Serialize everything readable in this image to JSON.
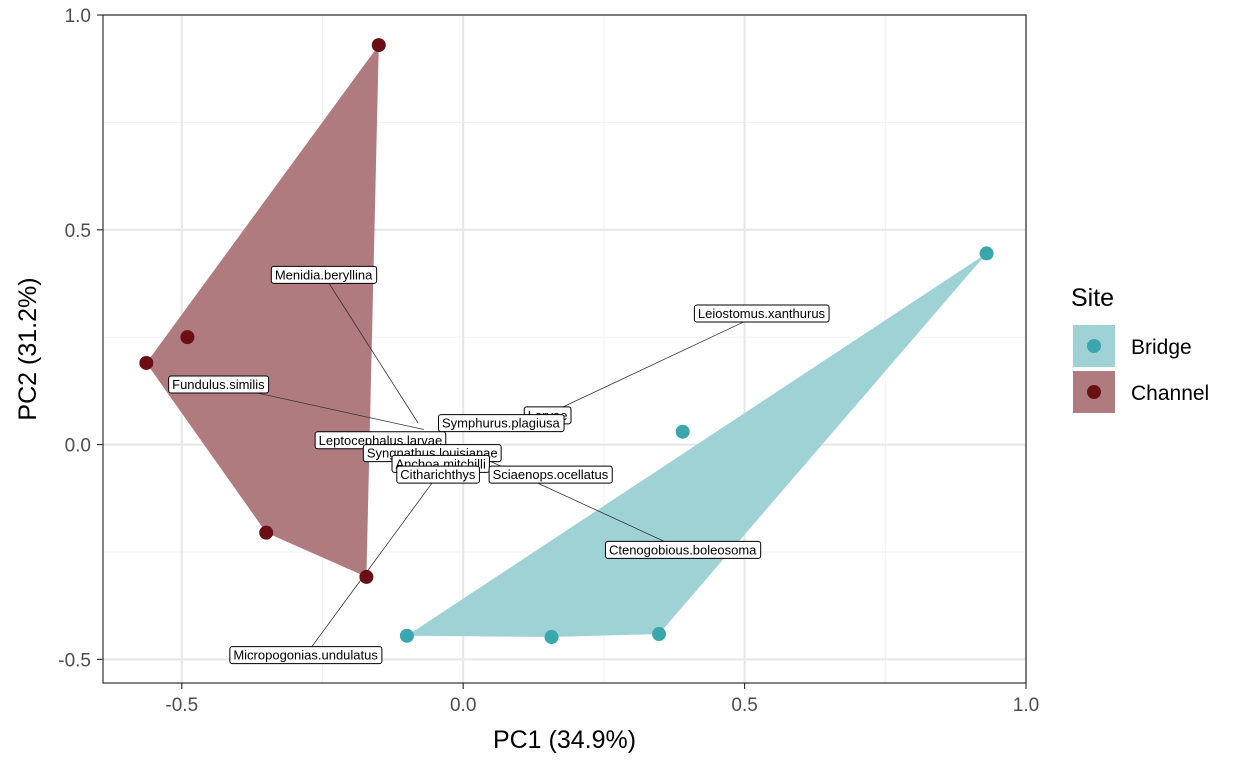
{
  "chart_data": {
    "type": "scatter",
    "xlabel": "PC1 (34.9%)",
    "ylabel": "PC2 (31.2%)",
    "xlim": [
      -0.64,
      1.0
    ],
    "ylim": [
      -0.555,
      1.0
    ],
    "x_ticks": [
      -0.5,
      0.0,
      0.5,
      1.0
    ],
    "x_tick_labels": [
      "-0.5",
      "0.0",
      "0.5",
      "1.0"
    ],
    "y_ticks": [
      -0.5,
      0.0,
      0.5,
      1.0
    ],
    "y_tick_labels": [
      "-0.5",
      "0.0",
      "0.5",
      "1.0"
    ],
    "grid": true,
    "legend": {
      "title": "Site",
      "position": "right"
    },
    "series": [
      {
        "name": "Bridge",
        "color": "#3aa6ad",
        "hull_color": "#9fd2d5",
        "points": [
          {
            "x": 0.93,
            "y": 0.445
          },
          {
            "x": 0.39,
            "y": 0.03
          },
          {
            "x": -0.1,
            "y": -0.445
          },
          {
            "x": 0.157,
            "y": -0.448
          },
          {
            "x": 0.348,
            "y": -0.441
          }
        ],
        "hull": [
          {
            "x": 0.93,
            "y": 0.445
          },
          {
            "x": 0.348,
            "y": -0.441
          },
          {
            "x": 0.157,
            "y": -0.448
          },
          {
            "x": -0.1,
            "y": -0.445
          }
        ]
      },
      {
        "name": "Channel",
        "color": "#6b0f14",
        "hull_color": "#b07b7e",
        "points": [
          {
            "x": -0.15,
            "y": 0.93
          },
          {
            "x": -0.49,
            "y": 0.25
          },
          {
            "x": -0.563,
            "y": 0.19
          },
          {
            "x": -0.35,
            "y": -0.205
          },
          {
            "x": -0.172,
            "y": -0.308
          }
        ],
        "hull": [
          {
            "x": -0.15,
            "y": 0.93
          },
          {
            "x": -0.172,
            "y": -0.308
          },
          {
            "x": -0.35,
            "y": -0.205
          },
          {
            "x": -0.563,
            "y": 0.19
          }
        ]
      }
    ],
    "annotations": [
      {
        "label": "Menidia.beryllina",
        "lx": -0.248,
        "ly": 0.395,
        "ax": -0.08,
        "ay": 0.05
      },
      {
        "label": "Leiostomus.xanthurus",
        "lx": 0.53,
        "ly": 0.305,
        "ax": 0.1,
        "ay": 0.04
      },
      {
        "label": "Fundulus.similis",
        "lx": -0.435,
        "ly": 0.14,
        "ax": -0.07,
        "ay": 0.035
      },
      {
        "label": "Larvae",
        "lx": 0.15,
        "ly": 0.068,
        "ax": null,
        "ay": null
      },
      {
        "label": "Symphurus.plagiusa",
        "lx": 0.067,
        "ly": 0.05,
        "ax": null,
        "ay": null
      },
      {
        "label": "Leptocephalus.larvae",
        "lx": -0.147,
        "ly": 0.01,
        "ax": null,
        "ay": null
      },
      {
        "label": "Syngnathus.louisianae",
        "lx": -0.055,
        "ly": -0.02,
        "ax": null,
        "ay": null
      },
      {
        "label": "Anchoa.mitchilli",
        "lx": -0.04,
        "ly": -0.045,
        "ax": null,
        "ay": null
      },
      {
        "label": "Citharichthys",
        "lx": -0.045,
        "ly": -0.07,
        "ax": -0.06,
        "ay": -0.08
      },
      {
        "label": "Sciaenops.ocellatus",
        "lx": 0.155,
        "ly": -0.07,
        "ax": null,
        "ay": null
      },
      {
        "label": "Ctenogobious.boleosoma",
        "lx": 0.39,
        "ly": -0.245,
        "ax": 0.05,
        "ay": -0.04
      },
      {
        "label": "Micropogonias.undulatus",
        "lx": -0.28,
        "ly": -0.49,
        "ax": -0.05,
        "ay": -0.08
      }
    ]
  }
}
